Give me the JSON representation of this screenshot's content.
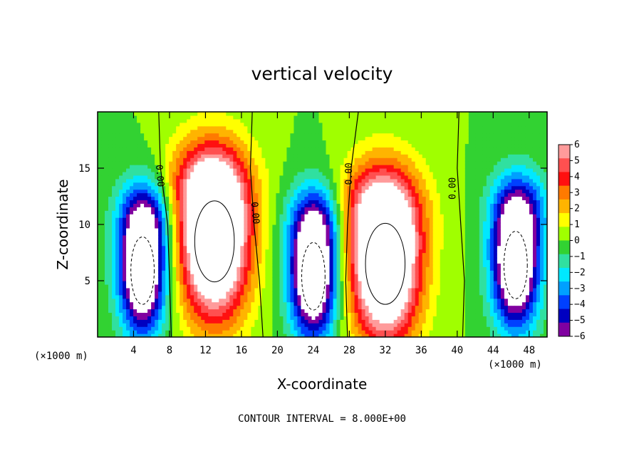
{
  "chart_data": {
    "type": "heatmap",
    "title": "vertical velocity",
    "xlabel": "X-coordinate",
    "ylabel": "Z-coordinate",
    "x_unit_left": "(×1000 m)",
    "x_unit_right": "(×1000 m)",
    "footer": "CONTOUR INTERVAL = 8.000E+00",
    "xlim": [
      0,
      50
    ],
    "ylim": [
      0,
      20
    ],
    "xticks": [
      4,
      8,
      12,
      16,
      20,
      24,
      28,
      32,
      36,
      40,
      44,
      48
    ],
    "xtick_labels": [
      "4",
      "8",
      "12",
      "16",
      "20",
      "24",
      "28",
      "32",
      "36",
      "40",
      "44",
      "48"
    ],
    "yticks": [
      5,
      10,
      15
    ],
    "ytick_labels": [
      "5",
      "10",
      "15"
    ],
    "colorbar": {
      "levels": [
        6,
        5,
        4,
        3,
        2,
        1,
        0,
        -1,
        -2,
        -3,
        -4,
        -5,
        -6
      ],
      "labels": [
        "6",
        "5",
        "4",
        "3",
        "2",
        "1",
        "0",
        "−1",
        "−2",
        "−3",
        "−4",
        "−5",
        "−6"
      ],
      "colors": [
        "#ff9b9b",
        "#ff5050",
        "#ff1010",
        "#ff7a00",
        "#ffb400",
        "#ffff00",
        "#a0ff00",
        "#32d232",
        "#30e0a0",
        "#00e8ff",
        "#00a0ff",
        "#0040ff",
        "#0000c0",
        "#8000a0"
      ]
    },
    "contour_labels": [
      "0.00",
      "0.00",
      "0.00",
      "0.00"
    ],
    "features": [
      {
        "kind": "downdraft",
        "x": 5.0,
        "z": 5.5,
        "w": -7
      },
      {
        "kind": "updraft",
        "x": 13.0,
        "z": 7.5,
        "w": 8
      },
      {
        "kind": "downdraft",
        "x": 24.0,
        "z": 5.0,
        "w": -7
      },
      {
        "kind": "updraft",
        "x": 32.0,
        "z": 5.5,
        "w": 8
      },
      {
        "kind": "downdraft",
        "x": 46.5,
        "z": 6.0,
        "w": -7
      }
    ]
  }
}
